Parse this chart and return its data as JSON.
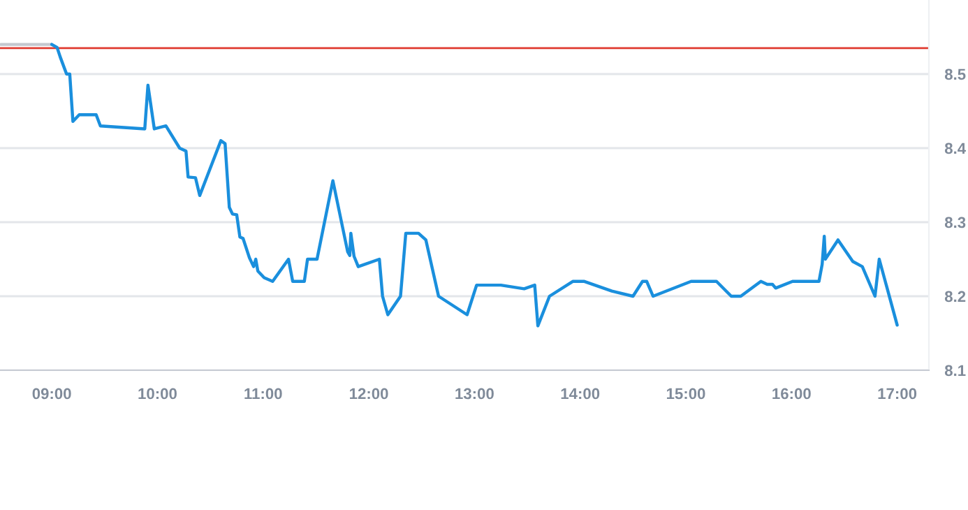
{
  "chart_data": {
    "type": "line",
    "series": [
      {
        "color": "#c4c8cf",
        "x": [
          8.52,
          9.0
        ],
        "values": [
          8.54,
          8.54
        ]
      },
      {
        "color": "#1a8fdd",
        "x": [
          9.0,
          9.05,
          9.08,
          9.14,
          9.17,
          9.2,
          9.26,
          9.42,
          9.46,
          9.88,
          9.91,
          9.97,
          10.08,
          10.21,
          10.27,
          10.29,
          10.36,
          10.4,
          10.6,
          10.64,
          10.68,
          10.71,
          10.75,
          10.78,
          10.81,
          10.87,
          10.91,
          10.93,
          10.95,
          11.01,
          11.09,
          11.24,
          11.28,
          11.39,
          11.42,
          11.51,
          11.66,
          11.8,
          11.82,
          11.83,
          11.86,
          11.9,
          12.1,
          12.13,
          12.18,
          12.3,
          12.35,
          12.47,
          12.54,
          12.66,
          12.93,
          13.02,
          13.25,
          13.47,
          13.57,
          13.6,
          13.71,
          13.93,
          14.04,
          14.3,
          14.5,
          14.59,
          14.63,
          14.69,
          15.05,
          15.29,
          15.43,
          15.52,
          15.71,
          15.77,
          15.82,
          15.85,
          16.01,
          16.26,
          16.29,
          16.31,
          16.32,
          16.44,
          16.58,
          16.67,
          16.79,
          16.83,
          17.0
        ],
        "values": [
          8.54,
          8.536,
          8.523,
          8.5,
          8.5,
          8.436,
          8.445,
          8.445,
          8.43,
          8.426,
          8.485,
          8.426,
          8.43,
          8.4,
          8.396,
          8.361,
          8.36,
          8.336,
          8.41,
          8.406,
          8.32,
          8.311,
          8.31,
          8.28,
          8.278,
          8.252,
          8.24,
          8.25,
          8.234,
          8.225,
          8.22,
          8.25,
          8.22,
          8.22,
          8.25,
          8.25,
          8.356,
          8.26,
          8.255,
          8.285,
          8.254,
          8.24,
          8.25,
          8.2,
          8.175,
          8.2,
          8.285,
          8.285,
          8.276,
          8.2,
          8.175,
          8.215,
          8.215,
          8.21,
          8.215,
          8.16,
          8.2,
          8.22,
          8.22,
          8.207,
          8.2,
          8.22,
          8.22,
          8.2,
          8.22,
          8.22,
          8.2,
          8.2,
          8.22,
          8.216,
          8.216,
          8.211,
          8.22,
          8.22,
          8.243,
          8.281,
          8.25,
          8.276,
          8.247,
          8.24,
          8.2,
          8.25,
          8.161
        ]
      }
    ],
    "ref_lines": [
      {
        "axis": "y",
        "value": 8.535,
        "color": "#e03c31"
      }
    ],
    "xlim": [
      8.51,
      17.3
    ],
    "ylim": [
      8.1,
      8.6
    ],
    "xticks": [
      {
        "value": 9,
        "label": "09:00"
      },
      {
        "value": 10,
        "label": "10:00"
      },
      {
        "value": 11,
        "label": "11:00"
      },
      {
        "value": 12,
        "label": "12:00"
      },
      {
        "value": 13,
        "label": "13:00"
      },
      {
        "value": 14,
        "label": "14:00"
      },
      {
        "value": 15,
        "label": "15:00"
      },
      {
        "value": 16,
        "label": "16:00"
      },
      {
        "value": 17,
        "label": "17:00"
      }
    ],
    "yticks": [
      8.1,
      8.2,
      8.3,
      8.4,
      8.5
    ],
    "grid": "y",
    "marker": "none",
    "line_style": "solid"
  }
}
